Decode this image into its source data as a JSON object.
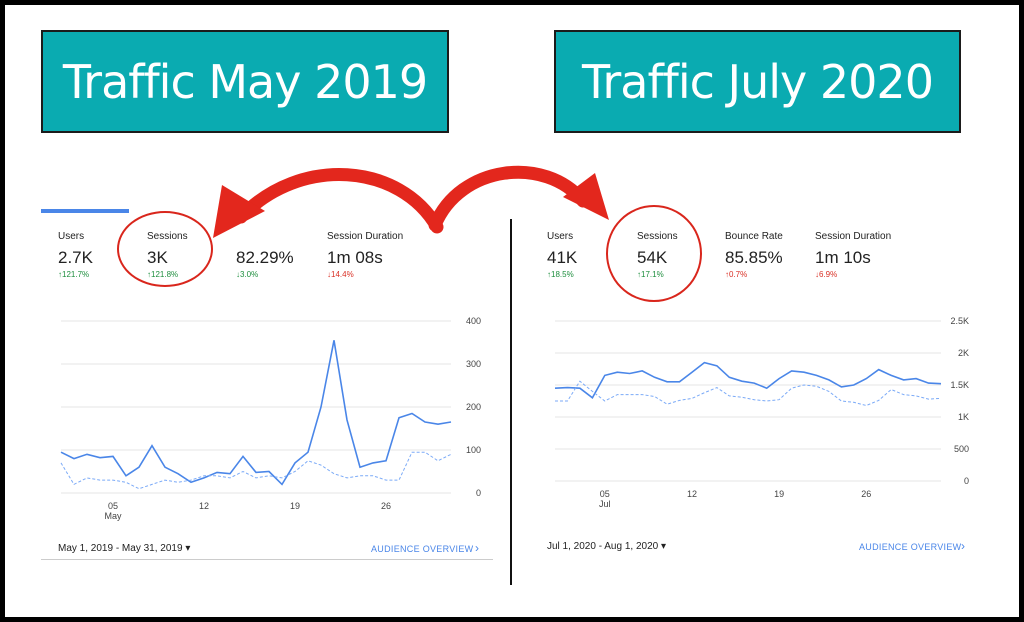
{
  "banners": {
    "left_title": "Traffic May 2019",
    "right_title": "Traffic July 2020"
  },
  "left_panel": {
    "metrics": [
      {
        "label": "Users",
        "value": "2.7K",
        "delta": "↑121.7%",
        "direction": "up"
      },
      {
        "label": "Sessions",
        "value": "3K",
        "delta": "↑121.8%",
        "direction": "up"
      },
      {
        "label": "",
        "value": "82.29%",
        "delta": "↓3.0%",
        "direction": "down-good"
      },
      {
        "label": "Session Duration",
        "value": "1m 08s",
        "delta": "↓14.4%",
        "direction": "down"
      }
    ],
    "date_range": "May 1, 2019 - May 31, 2019",
    "audience_overview": "AUDIENCE OVERVIEW",
    "chart_data": {
      "type": "line",
      "x": [
        1,
        2,
        3,
        4,
        5,
        6,
        7,
        8,
        9,
        10,
        11,
        12,
        13,
        14,
        15,
        16,
        17,
        18,
        19,
        20,
        21,
        22,
        23,
        24,
        25,
        26,
        27,
        28,
        29,
        30,
        31
      ],
      "series": [
        {
          "values": [
            95,
            80,
            90,
            82,
            85,
            40,
            60,
            110,
            60,
            45,
            25,
            35,
            48,
            45,
            85,
            48,
            50,
            20,
            70,
            95,
            200,
            355,
            170,
            60,
            70,
            75,
            175,
            185,
            165,
            160,
            165
          ]
        },
        {
          "values": [
            70,
            20,
            35,
            30,
            30,
            25,
            10,
            20,
            30,
            25,
            30,
            40,
            40,
            35,
            50,
            35,
            40,
            35,
            50,
            75,
            65,
            45,
            35,
            40,
            40,
            30,
            30,
            95,
            95,
            75,
            90
          ]
        }
      ],
      "x_tick_labels": [
        "05",
        "12",
        "19",
        "26"
      ],
      "x_tick_values": [
        5,
        12,
        19,
        26
      ],
      "x_sublabel": "May",
      "y_tick_labels": [
        "400",
        "300",
        "200",
        "100",
        "0"
      ],
      "y_tick_values": [
        400,
        300,
        200,
        100,
        0
      ],
      "ylim": [
        0,
        400
      ],
      "grid": true,
      "colors": {
        "solid": "#4a86e8",
        "dashed": "#7baaf7"
      }
    }
  },
  "right_panel": {
    "metrics": [
      {
        "label": "Users",
        "value": "41K",
        "delta": "↑18.5%",
        "direction": "up"
      },
      {
        "label": "Sessions",
        "value": "54K",
        "delta": "↑17.1%",
        "direction": "up"
      },
      {
        "label": "Bounce Rate",
        "value": "85.85%",
        "delta": "↑0.7%",
        "direction": "down"
      },
      {
        "label": "Session Duration",
        "value": "1m 10s",
        "delta": "↓6.9%",
        "direction": "down"
      }
    ],
    "date_range": "Jul 1, 2020 - Aug 1, 2020",
    "audience_overview": "AUDIENCE OVERVIEW",
    "chart_data": {
      "type": "line",
      "x": [
        1,
        2,
        3,
        4,
        5,
        6,
        7,
        8,
        9,
        10,
        11,
        12,
        13,
        14,
        15,
        16,
        17,
        18,
        19,
        20,
        21,
        22,
        23,
        24,
        25,
        26,
        27,
        28,
        29,
        30,
        31,
        32
      ],
      "series": [
        {
          "values": [
            1450,
            1460,
            1450,
            1300,
            1650,
            1700,
            1680,
            1720,
            1620,
            1550,
            1550,
            1700,
            1850,
            1800,
            1620,
            1560,
            1530,
            1450,
            1600,
            1720,
            1700,
            1650,
            1580,
            1470,
            1500,
            1600,
            1740,
            1650,
            1580,
            1600,
            1530,
            1520
          ]
        },
        {
          "values": [
            1250,
            1250,
            1560,
            1400,
            1250,
            1350,
            1350,
            1350,
            1320,
            1200,
            1260,
            1290,
            1380,
            1460,
            1330,
            1310,
            1270,
            1250,
            1270,
            1450,
            1500,
            1480,
            1400,
            1250,
            1230,
            1180,
            1260,
            1430,
            1350,
            1330,
            1280,
            1290
          ]
        }
      ],
      "x_tick_labels": [
        "05",
        "12",
        "19",
        "26"
      ],
      "x_tick_values": [
        5,
        12,
        19,
        26
      ],
      "x_sublabel": "Jul",
      "y_tick_labels": [
        "2.5K",
        "2K",
        "1.5K",
        "1K",
        "500",
        "0"
      ],
      "y_tick_values": [
        2500,
        2000,
        1500,
        1000,
        500,
        0
      ],
      "ylim": [
        0,
        2500
      ],
      "grid": true,
      "colors": {
        "solid": "#4a86e8",
        "dashed": "#7baaf7"
      }
    }
  },
  "annotation": {
    "color": "#d9261c"
  }
}
